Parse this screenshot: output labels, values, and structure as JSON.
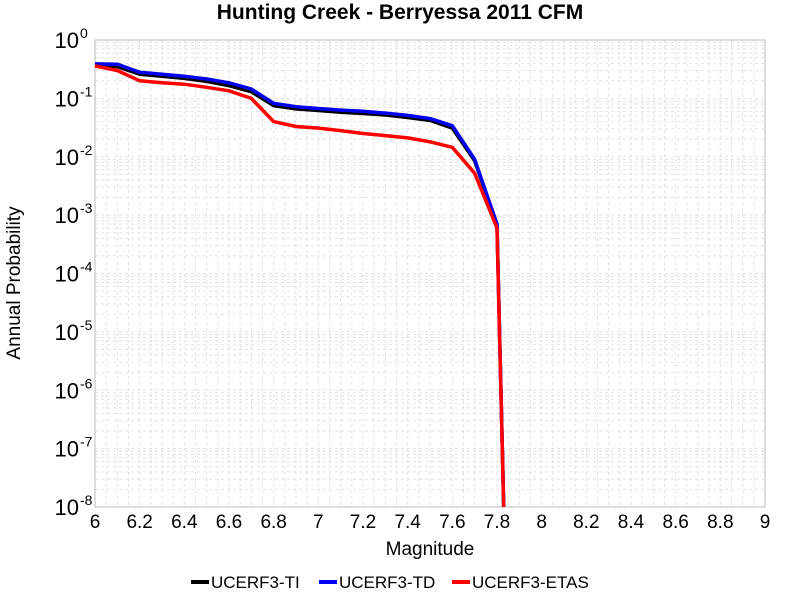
{
  "chart_data": {
    "type": "line",
    "title": "Hunting Creek - Berryessa 2011 CFM",
    "xlabel": "Magnitude",
    "ylabel": "Annual Probability",
    "xlim": [
      6,
      9
    ],
    "ylim": [
      1e-08,
      1
    ],
    "yscale": "log",
    "grid": true,
    "legend_position": "bottom",
    "x_ticks": [
      "6",
      "6.2",
      "6.4",
      "6.6",
      "6.8",
      "7",
      "7.2",
      "7.4",
      "7.6",
      "7.8",
      "8",
      "8.2",
      "8.4",
      "8.6",
      "8.8",
      "9"
    ],
    "y_ticks": [
      {
        "base": "10",
        "exp": "0",
        "value": 1
      },
      {
        "base": "10",
        "exp": "-1",
        "value": 0.1
      },
      {
        "base": "10",
        "exp": "-2",
        "value": 0.01
      },
      {
        "base": "10",
        "exp": "-3",
        "value": 0.001
      },
      {
        "base": "10",
        "exp": "-4",
        "value": 0.0001
      },
      {
        "base": "10",
        "exp": "-5",
        "value": 1e-05
      },
      {
        "base": "10",
        "exp": "-6",
        "value": 1e-06
      },
      {
        "base": "10",
        "exp": "-7",
        "value": 1e-07
      },
      {
        "base": "10",
        "exp": "-8",
        "value": 1e-08
      }
    ],
    "series": [
      {
        "name": "UCERF3-TI",
        "color": "#000000",
        "x": [
          6.0,
          6.1,
          6.2,
          6.3,
          6.4,
          6.5,
          6.6,
          6.7,
          6.8,
          6.9,
          7.0,
          7.1,
          7.2,
          7.3,
          7.4,
          7.5,
          7.6,
          7.7,
          7.8,
          7.83
        ],
        "y": [
          0.37,
          0.35,
          0.26,
          0.24,
          0.22,
          0.195,
          0.165,
          0.13,
          0.075,
          0.066,
          0.062,
          0.058,
          0.055,
          0.052,
          0.047,
          0.042,
          0.031,
          0.0085,
          0.0007,
          1e-08
        ]
      },
      {
        "name": "UCERF3-TD",
        "color": "#0000ee",
        "x": [
          6.0,
          6.1,
          6.2,
          6.3,
          6.4,
          6.5,
          6.6,
          6.7,
          6.8,
          6.9,
          7.0,
          7.1,
          7.2,
          7.3,
          7.4,
          7.5,
          7.6,
          7.7,
          7.8,
          7.83
        ],
        "y": [
          0.39,
          0.385,
          0.28,
          0.26,
          0.24,
          0.215,
          0.185,
          0.145,
          0.082,
          0.072,
          0.067,
          0.063,
          0.06,
          0.056,
          0.051,
          0.045,
          0.034,
          0.009,
          0.0007,
          1e-08
        ]
      },
      {
        "name": "UCERF3-ETAS",
        "color": "#ff0000",
        "x": [
          6.0,
          6.1,
          6.2,
          6.3,
          6.4,
          6.5,
          6.6,
          6.7,
          6.8,
          6.9,
          7.0,
          7.1,
          7.2,
          7.3,
          7.4,
          7.5,
          7.6,
          7.7,
          7.8,
          7.83
        ],
        "y": [
          0.36,
          0.3,
          0.2,
          0.185,
          0.175,
          0.155,
          0.135,
          0.1,
          0.04,
          0.033,
          0.031,
          0.028,
          0.025,
          0.023,
          0.021,
          0.018,
          0.0145,
          0.0052,
          0.0006,
          1e-08
        ]
      }
    ]
  }
}
